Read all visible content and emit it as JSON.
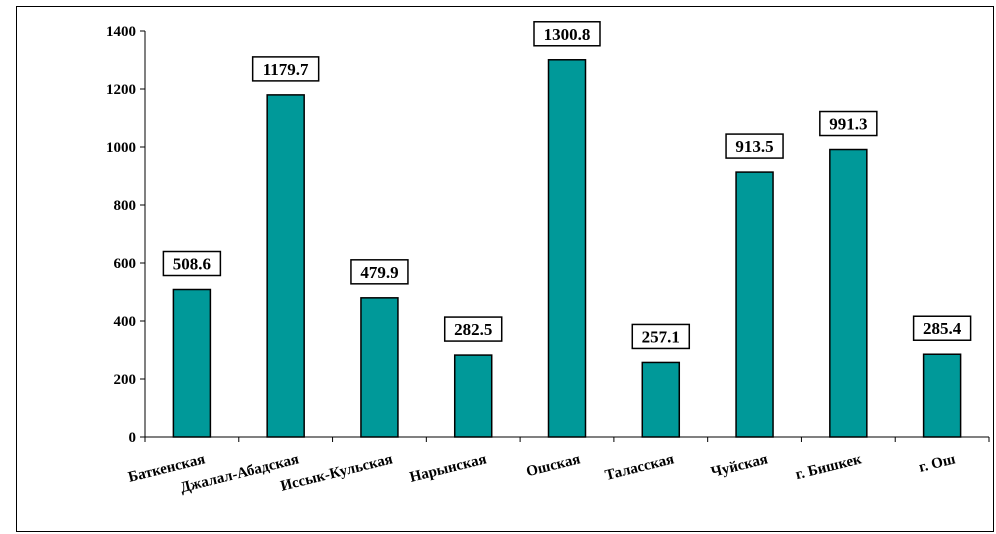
{
  "chart_data": {
    "type": "bar",
    "title": "",
    "xlabel": "",
    "ylabel": "",
    "categories": [
      "Баткенская",
      "Джалал-Абадская",
      "Иссык-Кульская",
      "Нарынская",
      "Ошская",
      "Таласская",
      "Чуйская",
      "г. Бишкек",
      "г. Ош"
    ],
    "values": [
      508.6,
      1179.7,
      479.9,
      282.5,
      1300.8,
      257.1,
      913.5,
      991.3,
      285.4
    ],
    "value_labels": [
      "508.6",
      "1179.7",
      "479.9",
      "282.5",
      "1300.8",
      "257.1",
      "913.5",
      "991.3",
      "285.4"
    ],
    "ylim": [
      0,
      1400
    ],
    "yticks": [
      0,
      200,
      400,
      600,
      800,
      1000,
      1200,
      1400
    ],
    "ytick_labels": [
      "0",
      "200",
      "400",
      "600",
      "800",
      "1000",
      "1200",
      "1400"
    ],
    "grid": false,
    "legend": "none",
    "bar_color": "#009999"
  }
}
